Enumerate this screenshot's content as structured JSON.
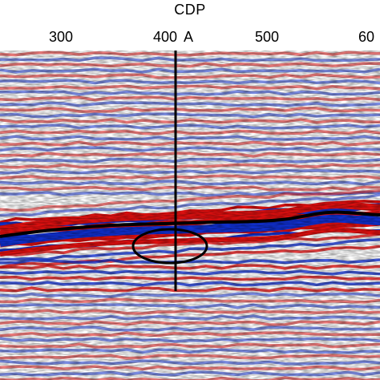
{
  "axis": {
    "title": "CDP",
    "ticks": [
      "300",
      "400",
      "500",
      "60"
    ]
  },
  "marker": {
    "label": "A"
  },
  "colors": {
    "positive": "#e01010",
    "negative": "#1030d0",
    "neutral": "#ffffff",
    "horizon": "#000000"
  }
}
